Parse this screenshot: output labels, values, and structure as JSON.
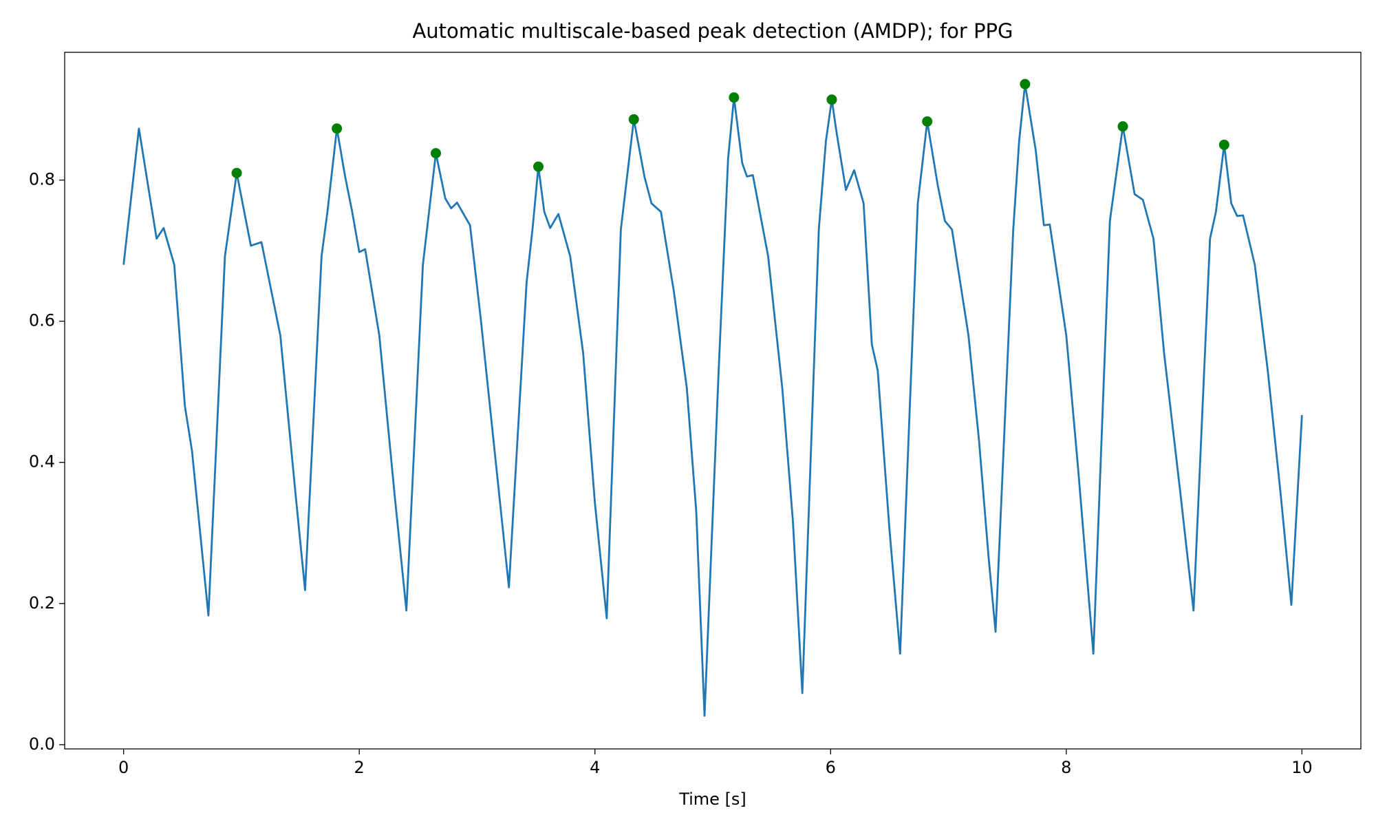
{
  "chart_data": {
    "type": "line",
    "title": "Automatic multiscale-based peak detection (AMDP); for PPG",
    "x_label": "Time [s]",
    "xlim": [
      -0.5,
      10.5
    ],
    "ylim": [
      -0.006,
      0.981
    ],
    "xticks": [
      0,
      2,
      4,
      6,
      8,
      10
    ],
    "yticks": [
      {
        "value": 0,
        "label": "0.0"
      },
      0.2,
      0.4,
      0.6,
      0.8
    ],
    "grid": false,
    "series": [
      {
        "style": "line",
        "color": "#1f77b4",
        "x": [
          0,
          0.13,
          0.28,
          0.34,
          0.43,
          0.52,
          0.58,
          0.72,
          0.86,
          0.96,
          1.08,
          1.17,
          1.33,
          1.46,
          1.54,
          1.68,
          1.73,
          1.81,
          1.88,
          1.94,
          2.0,
          2.05,
          2.17,
          2.3,
          2.4,
          2.54,
          2.65,
          2.73,
          2.78,
          2.83,
          2.94,
          3.03,
          3.14,
          3.27,
          3.42,
          3.47,
          3.52,
          3.57,
          3.62,
          3.69,
          3.79,
          3.9,
          4.0,
          4.1,
          4.22,
          4.33,
          4.42,
          4.48,
          4.56,
          4.67,
          4.78,
          4.86,
          4.93,
          5.05,
          5.13,
          5.18,
          5.25,
          5.29,
          5.34,
          5.47,
          5.59,
          5.68,
          5.76,
          5.9,
          5.96,
          6.01,
          6.05,
          6.13,
          6.2,
          6.28,
          6.35,
          6.4,
          6.5,
          6.59,
          6.74,
          6.82,
          6.91,
          6.97,
          7.03,
          7.17,
          7.26,
          7.34,
          7.4,
          7.55,
          7.6,
          7.65,
          7.74,
          7.81,
          7.86,
          8.0,
          8.1,
          8.23,
          8.37,
          8.48,
          8.58,
          8.65,
          8.74,
          8.83,
          8.97,
          9.08,
          9.22,
          9.27,
          9.34,
          9.4,
          9.45,
          9.5,
          9.6,
          9.71,
          9.82,
          9.91,
          10.0
        ],
        "values": [
          0.68,
          0.873,
          0.717,
          0.732,
          0.68,
          0.48,
          0.417,
          0.183,
          0.692,
          0.81,
          0.707,
          0.712,
          0.58,
          0.354,
          0.219,
          0.692,
          0.755,
          0.873,
          0.805,
          0.755,
          0.698,
          0.702,
          0.58,
          0.354,
          0.19,
          0.68,
          0.838,
          0.774,
          0.76,
          0.768,
          0.736,
          0.605,
          0.43,
          0.223,
          0.655,
          0.73,
          0.819,
          0.755,
          0.732,
          0.752,
          0.692,
          0.555,
          0.342,
          0.179,
          0.73,
          0.886,
          0.805,
          0.767,
          0.755,
          0.642,
          0.505,
          0.33,
          0.041,
          0.53,
          0.83,
          0.917,
          0.824,
          0.805,
          0.807,
          0.692,
          0.505,
          0.317,
          0.073,
          0.73,
          0.855,
          0.914,
          0.868,
          0.786,
          0.814,
          0.767,
          0.567,
          0.53,
          0.304,
          0.129,
          0.767,
          0.883,
          0.792,
          0.742,
          0.73,
          0.58,
          0.43,
          0.267,
          0.16,
          0.73,
          0.855,
          0.936,
          0.843,
          0.736,
          0.737,
          0.58,
          0.392,
          0.129,
          0.742,
          0.876,
          0.78,
          0.772,
          0.717,
          0.555,
          0.354,
          0.19,
          0.717,
          0.755,
          0.85,
          0.767,
          0.749,
          0.75,
          0.68,
          0.53,
          0.354,
          0.198,
          0.467
        ]
      },
      {
        "style": "markers",
        "color": "#008000",
        "x": [
          0.96,
          1.81,
          2.65,
          3.52,
          4.33,
          5.18,
          6.01,
          6.82,
          7.65,
          8.48,
          9.34
        ],
        "values": [
          0.81,
          0.873,
          0.838,
          0.819,
          0.886,
          0.917,
          0.914,
          0.883,
          0.936,
          0.876,
          0.85
        ]
      }
    ]
  }
}
